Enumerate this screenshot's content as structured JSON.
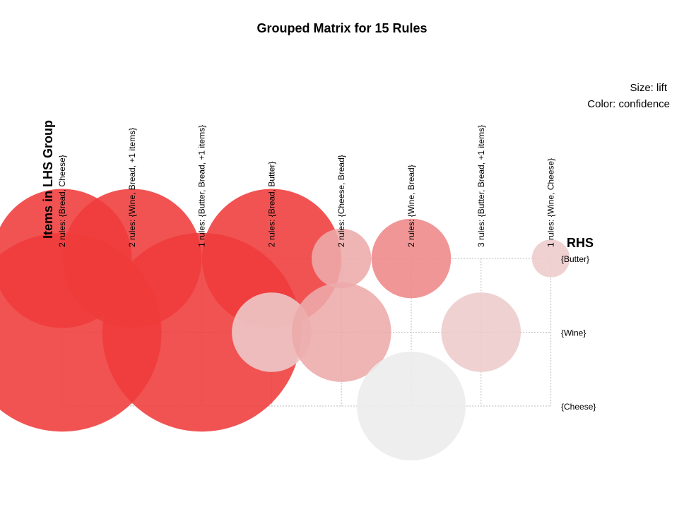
{
  "chart_data": {
    "type": "scatter",
    "title": "Grouped Matrix for 15 Rules",
    "legend": {
      "size_text": "Size: lift",
      "color_text": "Color: confidence",
      "placement": "top-right"
    },
    "x_title": "Items in LHS Group",
    "y_title": "RHS",
    "lhs_groups": [
      "2 rules: {Bread, Cheese}",
      "2 rules: {Wine, Bread, +1 items}",
      "1 rules: {Butter, Bread, +1 items}",
      "2 rules: {Bread, Butter}",
      "2 rules: {Cheese, Bread}",
      "2 rules: {Wine, Bread}",
      "3 rules: {Butter, Bread, +1 items}",
      "1 rules: {Wine, Cheese}"
    ],
    "rhs_items": [
      "{Butter}",
      "{Wine}",
      "{Cheese}"
    ],
    "points": [
      {
        "lhs": 0,
        "rhs": 0,
        "lift": 1.47,
        "confidence": 0.95
      },
      {
        "lhs": 1,
        "rhs": 0,
        "lift": 1.47,
        "confidence": 0.95
      },
      {
        "lhs": 3,
        "rhs": 0,
        "lift": 1.47,
        "confidence": 0.95
      },
      {
        "lhs": 4,
        "rhs": 0,
        "lift": 0.63,
        "confidence": 0.45
      },
      {
        "lhs": 5,
        "rhs": 0,
        "lift": 0.84,
        "confidence": 0.6
      },
      {
        "lhs": 7,
        "rhs": 0,
        "lift": 0.4,
        "confidence": 0.3
      },
      {
        "lhs": 0,
        "rhs": 1,
        "lift": 2.1,
        "confidence": 0.95
      },
      {
        "lhs": 2,
        "rhs": 1,
        "lift": 2.1,
        "confidence": 0.95
      },
      {
        "lhs": 3,
        "rhs": 1,
        "lift": 0.84,
        "confidence": 0.3
      },
      {
        "lhs": 4,
        "rhs": 1,
        "lift": 1.05,
        "confidence": 0.45
      },
      {
        "lhs": 6,
        "rhs": 1,
        "lift": 0.84,
        "confidence": 0.3
      },
      {
        "lhs": 5,
        "rhs": 2,
        "lift": 1.15,
        "confidence": 0.15
      }
    ],
    "colors": {
      "high": "#ef3b3b",
      "low": "#ececec",
      "grid": "#bdbdbd"
    },
    "grid": true
  }
}
